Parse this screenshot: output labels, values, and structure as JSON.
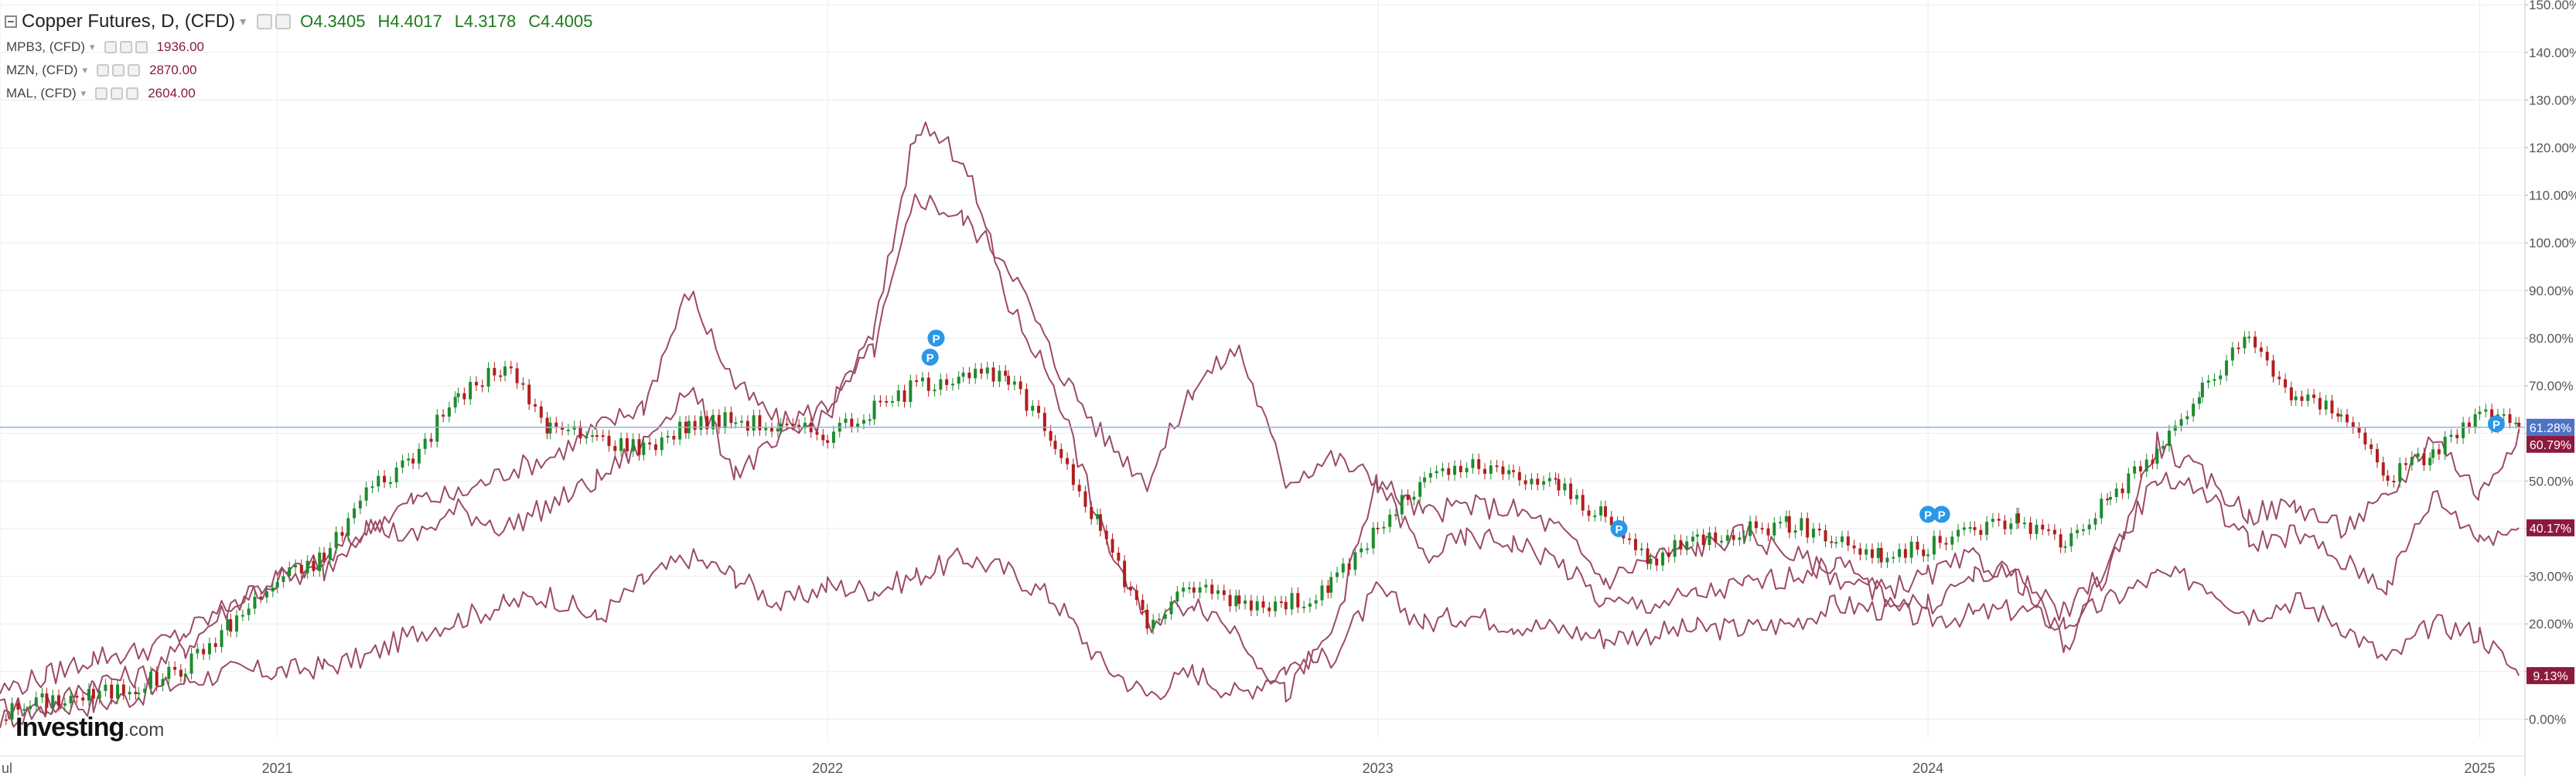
{
  "legend": {
    "main_title": "Copper Futures, D, (CFD)",
    "open": "O4.3405",
    "high": "H4.4017",
    "low": "L4.3178",
    "close": "C4.4005",
    "overlays": [
      {
        "name": "MPB3, (CFD)",
        "value": "1936.00"
      },
      {
        "name": "MZN, (CFD)",
        "value": "2870.00"
      },
      {
        "name": "MAL, (CFD)",
        "value": "2604.00"
      }
    ]
  },
  "watermark": {
    "brand": "Investing",
    "domain": ".com"
  },
  "colors": {
    "candle_up": "#1e8b2e",
    "candle_down": "#b01e1e",
    "overlay_line": "#9c4a68",
    "axis_text": "#555555",
    "grid": "#ececec",
    "current_line": "#8fb3e0",
    "badge_blue": "#4f73c4",
    "badge_maroon": "#8b1a3c",
    "marker_blue": "#2a97e8"
  },
  "chart_data": {
    "type": "line",
    "title": "Copper Futures, D, (CFD)",
    "xlabel": "",
    "ylabel": "",
    "ylim": [
      -4,
      151
    ],
    "y_ticks": [
      0,
      10,
      20,
      30,
      40,
      50,
      60,
      70,
      80,
      90,
      100,
      110,
      120,
      130,
      140,
      150
    ],
    "y_tick_labels": [
      "0.00%",
      "10.00%",
      "20.00%",
      "30.00%",
      "40.00%",
      "50.00%",
      "60.00%",
      "70.00%",
      "80.00%",
      "90.00%",
      "100.00%",
      "110.00%",
      "120.00%",
      "130.00%",
      "140.00%",
      "150.00%"
    ],
    "x_range": [
      "2020-07-01",
      "2025-01-31"
    ],
    "x_ticks": [
      {
        "date": "2020-07-01",
        "label": "ul"
      },
      {
        "date": "2021-01-01",
        "label": "2021"
      },
      {
        "date": "2022-01-01",
        "label": "2022"
      },
      {
        "date": "2023-01-01",
        "label": "2023"
      },
      {
        "date": "2024-01-01",
        "label": "2024"
      },
      {
        "date": "2025-01-01",
        "label": "2025"
      }
    ],
    "grid": true,
    "log_scale": false,
    "series": [
      {
        "name": "Copper Futures, D, (CFD)",
        "style": "candlestick",
        "x": [
          "2020-07-01",
          "2020-08-01",
          "2020-09-01",
          "2020-10-01",
          "2020-11-01",
          "2020-12-01",
          "2021-01-01",
          "2021-02-01",
          "2021-03-01",
          "2021-04-01",
          "2021-05-01",
          "2021-06-01",
          "2021-07-01",
          "2021-08-01",
          "2021-09-01",
          "2021-10-01",
          "2021-11-01",
          "2021-12-01",
          "2022-01-01",
          "2022-02-01",
          "2022-03-01",
          "2022-04-01",
          "2022-05-01",
          "2022-06-01",
          "2022-07-01",
          "2022-08-01",
          "2022-09-01",
          "2022-10-01",
          "2022-11-01",
          "2022-12-01",
          "2023-01-01",
          "2023-02-01",
          "2023-03-01",
          "2023-04-01",
          "2023-05-01",
          "2023-06-01",
          "2023-07-01",
          "2023-08-01",
          "2023-09-01",
          "2023-10-01",
          "2023-11-01",
          "2023-12-01",
          "2024-01-01",
          "2024-02-01",
          "2024-03-01",
          "2024-04-01",
          "2024-05-01",
          "2024-06-01",
          "2024-07-01",
          "2024-08-01",
          "2024-09-01",
          "2024-10-01",
          "2024-11-01",
          "2024-12-01",
          "2025-01-01",
          "2025-01-27"
        ],
        "y": [
          1,
          4,
          5,
          7,
          11,
          20,
          29,
          34,
          48,
          55,
          68,
          74,
          61,
          59,
          57,
          62,
          63,
          61,
          60,
          65,
          70,
          73,
          71,
          58,
          40,
          20,
          28,
          25,
          24,
          28,
          40,
          50,
          53,
          51,
          49,
          42,
          33,
          38,
          40,
          41,
          38,
          34,
          36,
          40,
          42,
          37,
          47,
          56,
          69,
          80,
          67,
          65,
          51,
          56,
          64,
          61.28
        ]
      },
      {
        "name": "MPB3, (CFD)",
        "style": "line",
        "x": [
          "2020-07-01",
          "2020-08-01",
          "2020-09-01",
          "2020-10-01",
          "2020-11-01",
          "2020-12-01",
          "2021-01-01",
          "2021-02-01",
          "2021-03-01",
          "2021-04-01",
          "2021-05-01",
          "2021-06-01",
          "2021-07-01",
          "2021-08-01",
          "2021-09-01",
          "2021-10-01",
          "2021-11-01",
          "2021-12-01",
          "2022-01-01",
          "2022-02-01",
          "2022-03-01",
          "2022-04-01",
          "2022-05-01",
          "2022-06-01",
          "2022-07-01",
          "2022-08-01",
          "2022-09-01",
          "2022-10-01",
          "2022-11-01",
          "2022-12-01",
          "2023-01-01",
          "2023-02-01",
          "2023-03-01",
          "2023-04-01",
          "2023-05-01",
          "2023-06-01",
          "2023-07-01",
          "2023-08-01",
          "2023-09-01",
          "2023-10-01",
          "2023-11-01",
          "2023-12-01",
          "2024-01-01",
          "2024-02-01",
          "2024-03-01",
          "2024-04-01",
          "2024-05-01",
          "2024-06-01",
          "2024-07-01",
          "2024-08-01",
          "2024-09-01",
          "2024-10-01",
          "2024-11-01",
          "2024-12-01",
          "2025-01-01",
          "2025-01-27"
        ],
        "y": [
          2,
          3,
          3,
          5,
          8,
          10,
          10,
          11,
          13,
          18,
          21,
          24,
          26,
          21,
          29,
          34,
          30,
          24,
          28,
          27,
          30,
          34,
          31,
          25,
          12,
          5,
          10,
          5,
          11,
          13,
          27,
          20,
          22,
          20,
          19,
          17,
          18,
          19,
          19,
          20,
          24,
          23,
          21,
          22,
          23,
          20,
          25,
          30,
          29,
          22,
          25,
          20,
          12,
          20,
          18,
          9.13
        ]
      },
      {
        "name": "MZN, (CFD)",
        "style": "line",
        "x": [
          "2020-07-01",
          "2020-08-01",
          "2020-09-01",
          "2020-10-01",
          "2020-11-01",
          "2020-12-01",
          "2021-01-01",
          "2021-02-01",
          "2021-03-01",
          "2021-04-01",
          "2021-05-01",
          "2021-06-01",
          "2021-07-01",
          "2021-08-01",
          "2021-09-01",
          "2021-10-01",
          "2021-11-01",
          "2021-12-01",
          "2022-01-01",
          "2022-02-01",
          "2022-03-01",
          "2022-04-01",
          "2022-05-01",
          "2022-06-01",
          "2022-07-01",
          "2022-08-01",
          "2022-09-01",
          "2022-10-01",
          "2022-11-01",
          "2022-12-01",
          "2023-01-01",
          "2023-02-01",
          "2023-03-01",
          "2023-04-01",
          "2023-05-01",
          "2023-06-01",
          "2023-07-01",
          "2023-08-01",
          "2023-09-01",
          "2023-10-01",
          "2023-11-01",
          "2023-12-01",
          "2024-01-01",
          "2024-02-01",
          "2024-03-01",
          "2024-04-01",
          "2024-05-01",
          "2024-06-01",
          "2024-07-01",
          "2024-08-01",
          "2024-09-01",
          "2024-10-01",
          "2024-11-01",
          "2024-12-01",
          "2025-01-01",
          "2025-01-27"
        ],
        "y": [
          0,
          2,
          8,
          9,
          15,
          24,
          30,
          33,
          40,
          46,
          47,
          52,
          55,
          61,
          66,
          90,
          70,
          62,
          66,
          78,
          110,
          105,
          96,
          75,
          60,
          50,
          70,
          78,
          50,
          55,
          50,
          43,
          45,
          44,
          40,
          29,
          34,
          36,
          39,
          35,
          30,
          27,
          30,
          34,
          29,
          22,
          33,
          58,
          51,
          43,
          45,
          40,
          46,
          60,
          47,
          60.79
        ]
      },
      {
        "name": "MAL, (CFD)",
        "style": "line",
        "x": [
          "2020-07-01",
          "2020-08-01",
          "2020-09-01",
          "2020-10-01",
          "2020-11-01",
          "2020-12-01",
          "2021-01-01",
          "2021-02-01",
          "2021-03-01",
          "2021-04-01",
          "2021-05-01",
          "2021-06-01",
          "2021-07-01",
          "2021-08-01",
          "2021-09-01",
          "2021-10-01",
          "2021-11-01",
          "2021-12-01",
          "2022-01-01",
          "2022-02-01",
          "2022-03-01",
          "2022-04-01",
          "2022-05-01",
          "2022-06-01",
          "2022-07-01",
          "2022-08-01",
          "2022-09-01",
          "2022-10-01",
          "2022-11-01",
          "2022-12-01",
          "2023-01-01",
          "2023-02-01",
          "2023-03-01",
          "2023-04-01",
          "2023-05-01",
          "2023-06-01",
          "2023-07-01",
          "2023-08-01",
          "2023-09-01",
          "2023-10-01",
          "2023-11-01",
          "2023-12-01",
          "2024-01-01",
          "2024-02-01",
          "2024-03-01",
          "2024-04-01",
          "2024-05-01",
          "2024-06-01",
          "2024-07-01",
          "2024-08-01",
          "2024-09-01",
          "2024-10-01",
          "2024-11-01",
          "2024-12-01",
          "2025-01-01",
          "2025-01-27"
        ],
        "y": [
          6,
          9,
          13,
          14,
          18,
          24,
          29,
          31,
          41,
          38,
          44,
          40,
          45,
          50,
          58,
          70,
          52,
          58,
          64,
          81,
          125,
          118,
          87,
          70,
          40,
          20,
          25,
          18,
          5,
          18,
          50,
          34,
          38,
          37,
          33,
          24,
          24,
          26,
          28,
          30,
          33,
          26,
          24,
          30,
          31,
          15,
          33,
          51,
          48,
          37,
          39,
          33,
          28,
          47,
          38,
          40.17
        ]
      }
    ],
    "price_markers": [
      {
        "date": "2022-03-10",
        "value": 76,
        "label": "P"
      },
      {
        "date": "2022-03-14",
        "value": 80,
        "label": "P"
      },
      {
        "date": "2023-06-10",
        "value": 40,
        "label": "P"
      },
      {
        "date": "2024-01-01",
        "value": 43,
        "label": "P"
      },
      {
        "date": "2024-01-10",
        "value": 43,
        "label": "P"
      },
      {
        "date": "2025-01-12",
        "value": 62,
        "label": "P"
      }
    ],
    "last_value_badges": [
      {
        "series": "Copper Futures, D, (CFD)",
        "value": 61.28,
        "text": "61.28%"
      },
      {
        "series": "MZN, (CFD)",
        "value": 60.79,
        "text": "60.79%"
      },
      {
        "series": "MAL, (CFD)",
        "value": 40.17,
        "text": "40.17%"
      },
      {
        "series": "MPB3, (CFD)",
        "value": 9.13,
        "text": "9.13%"
      }
    ]
  }
}
